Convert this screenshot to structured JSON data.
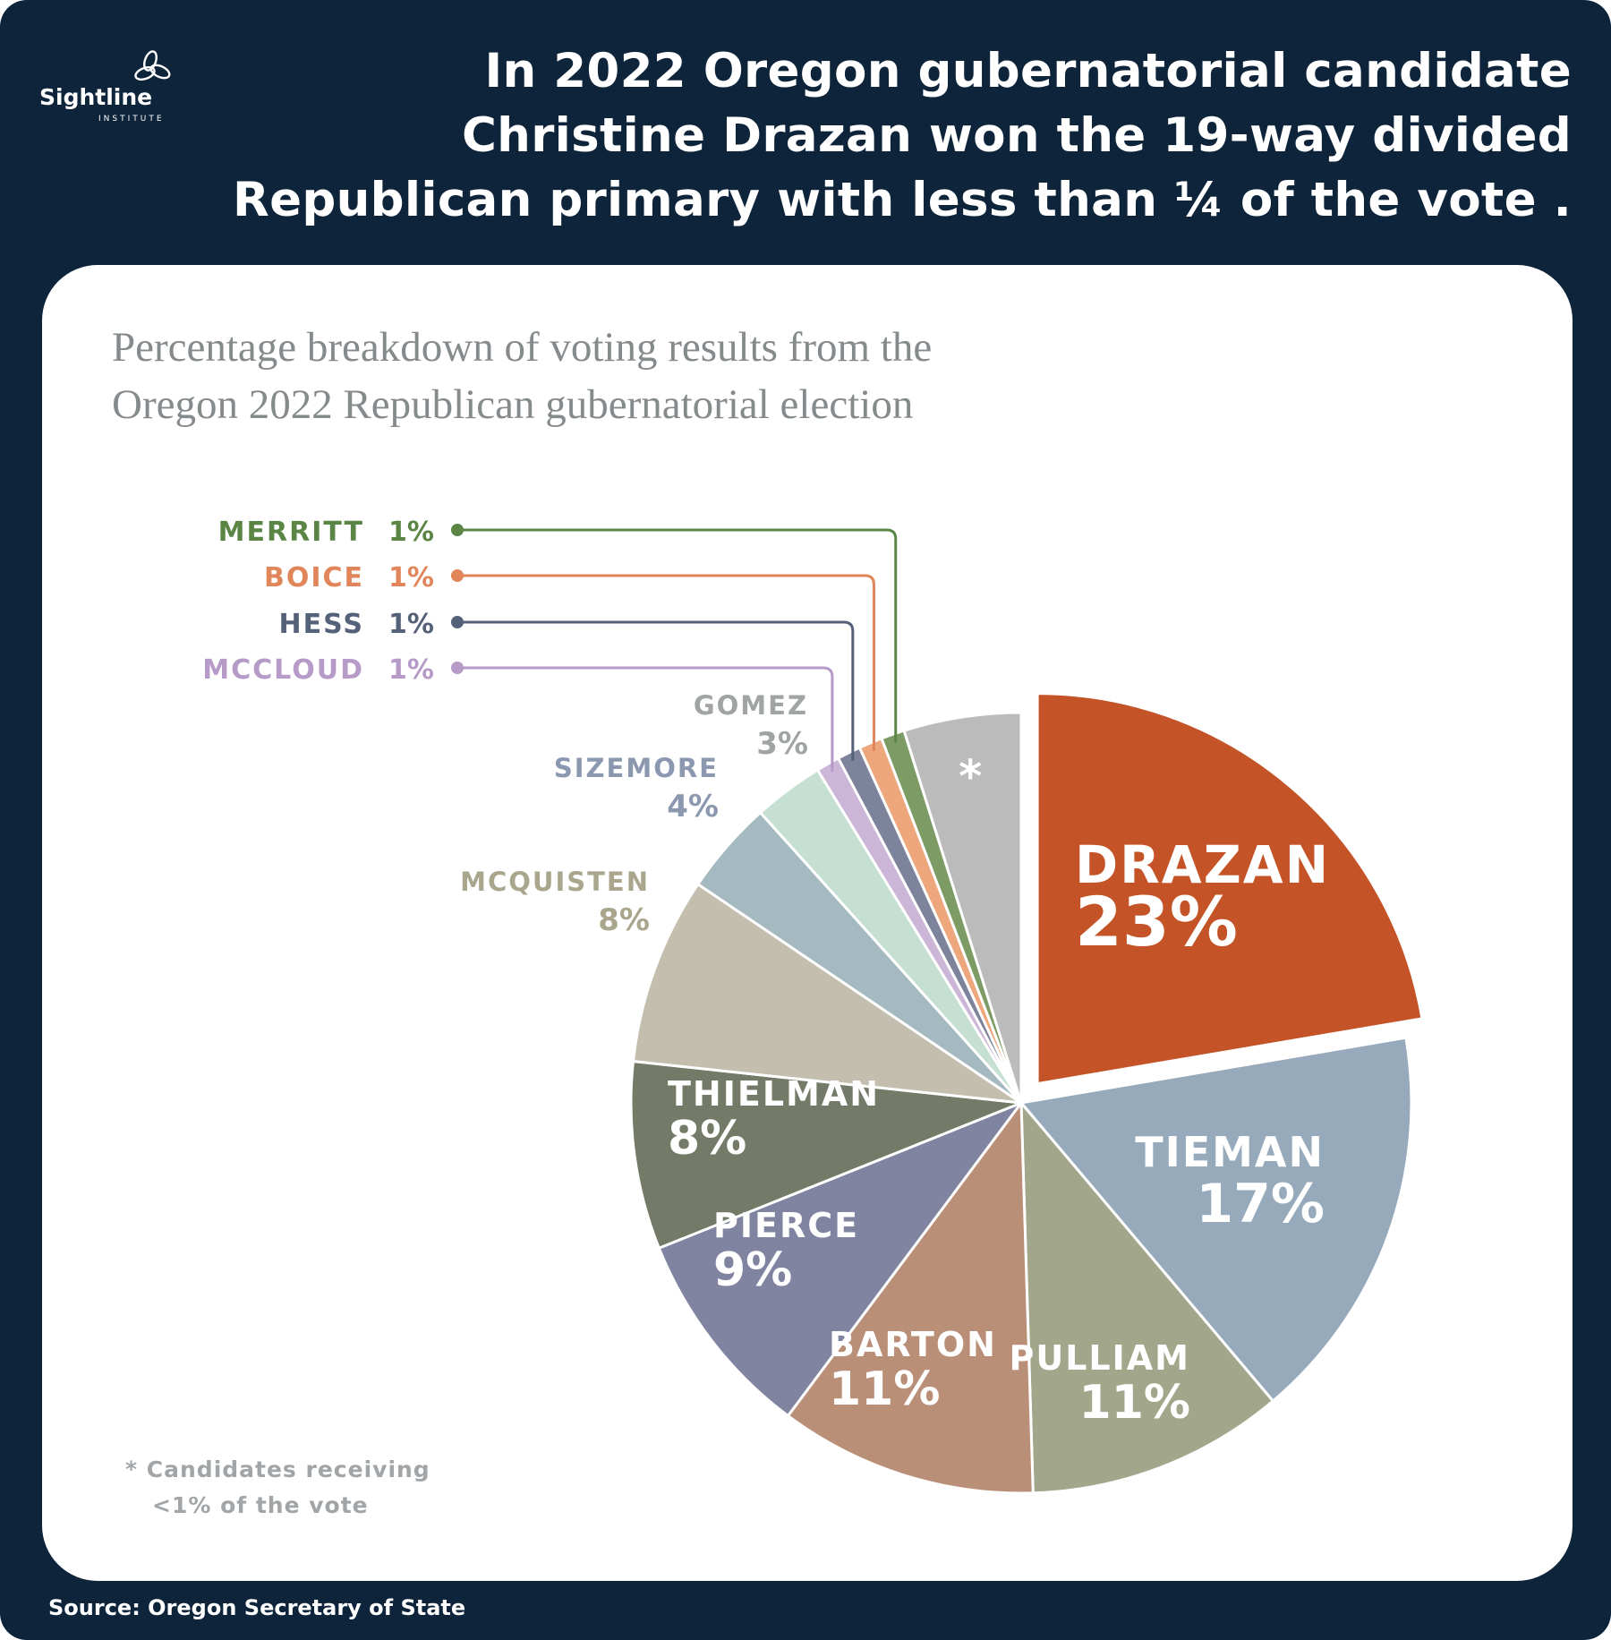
{
  "logo": {
    "name": "Sightline",
    "sub": "INSTITUTE"
  },
  "headline": {
    "line1": "In 2022 Oregon gubernatorial candidate",
    "line2": "Christine Drazan won the 19-way divided",
    "line3": "Republican primary with less than ¼ of the vote ."
  },
  "subtitle": {
    "line1": "Percentage breakdown of voting results from the",
    "line2": "Oregon 2022 Republican gubernatorial election"
  },
  "footnote": {
    "line1": "* Candidates receiving",
    "line2": "<1% of the vote"
  },
  "source": "Source: Oregon Secretary of State",
  "chart_data": {
    "type": "pie",
    "title": "",
    "start": "12 o'clock, clockwise",
    "slices": [
      {
        "name": "Drazan",
        "label": "DRAZAN",
        "pct_label": "23%",
        "value": 23,
        "color": "#c45427",
        "text_color": "#ffffff",
        "exploded": true
      },
      {
        "name": "Tieman",
        "label": "TIEMAN",
        "pct_label": "17%",
        "value": 17,
        "color": "#97aabb",
        "text_color": "#ffffff"
      },
      {
        "name": "Pulliam",
        "label": "PULLIAM",
        "pct_label": "11%",
        "value": 11,
        "color": "#a2a78b",
        "text_color": "#ffffff"
      },
      {
        "name": "Barton",
        "label": "BARTON",
        "pct_label": "11%",
        "value": 11,
        "color": "#ba8f78",
        "text_color": "#ffffff"
      },
      {
        "name": "Pierce",
        "label": "PIERCE",
        "pct_label": "9%",
        "value": 9,
        "color": "#8084a1",
        "text_color": "#ffffff"
      },
      {
        "name": "Thielman",
        "label": "THIELMAN",
        "pct_label": "8%",
        "value": 8,
        "color": "#737a67",
        "text_color": "#ffffff"
      },
      {
        "name": "McQuisten",
        "label": "MCQUISTEN",
        "pct_label": "8%",
        "value": 8,
        "color": "#c3beae",
        "text_color": "#a9a68d"
      },
      {
        "name": "Sizemore",
        "label": "SIZEMORE",
        "pct_label": "4%",
        "value": 4,
        "color": "#a4bac0",
        "text_color": "#8b98b0"
      },
      {
        "name": "Gomez",
        "label": "GOMEZ",
        "pct_label": "3%",
        "value": 3,
        "color": "#c5dfd2",
        "text_color": "#a0a5a3"
      },
      {
        "name": "McCloud",
        "label": "MCCLOUD",
        "pct_label": "1%",
        "value": 1,
        "color": "#cbb6d7",
        "text_color": "#b69ac8"
      },
      {
        "name": "Hess",
        "label": "HESS",
        "pct_label": "1%",
        "value": 1,
        "color": "#7e839c",
        "text_color": "#546178"
      },
      {
        "name": "Boice",
        "label": "BOICE",
        "pct_label": "1%",
        "value": 1,
        "color": "#eea67c",
        "text_color": "#e0865a"
      },
      {
        "name": "Merritt",
        "label": "MERRITT",
        "pct_label": "1%",
        "value": 1,
        "color": "#7d9c65",
        "text_color": "#5a8544"
      },
      {
        "name": "Others",
        "label": "*",
        "pct_label": "",
        "value": 5,
        "color": "#bbbbbb",
        "text_color": "#ffffff"
      }
    ]
  }
}
